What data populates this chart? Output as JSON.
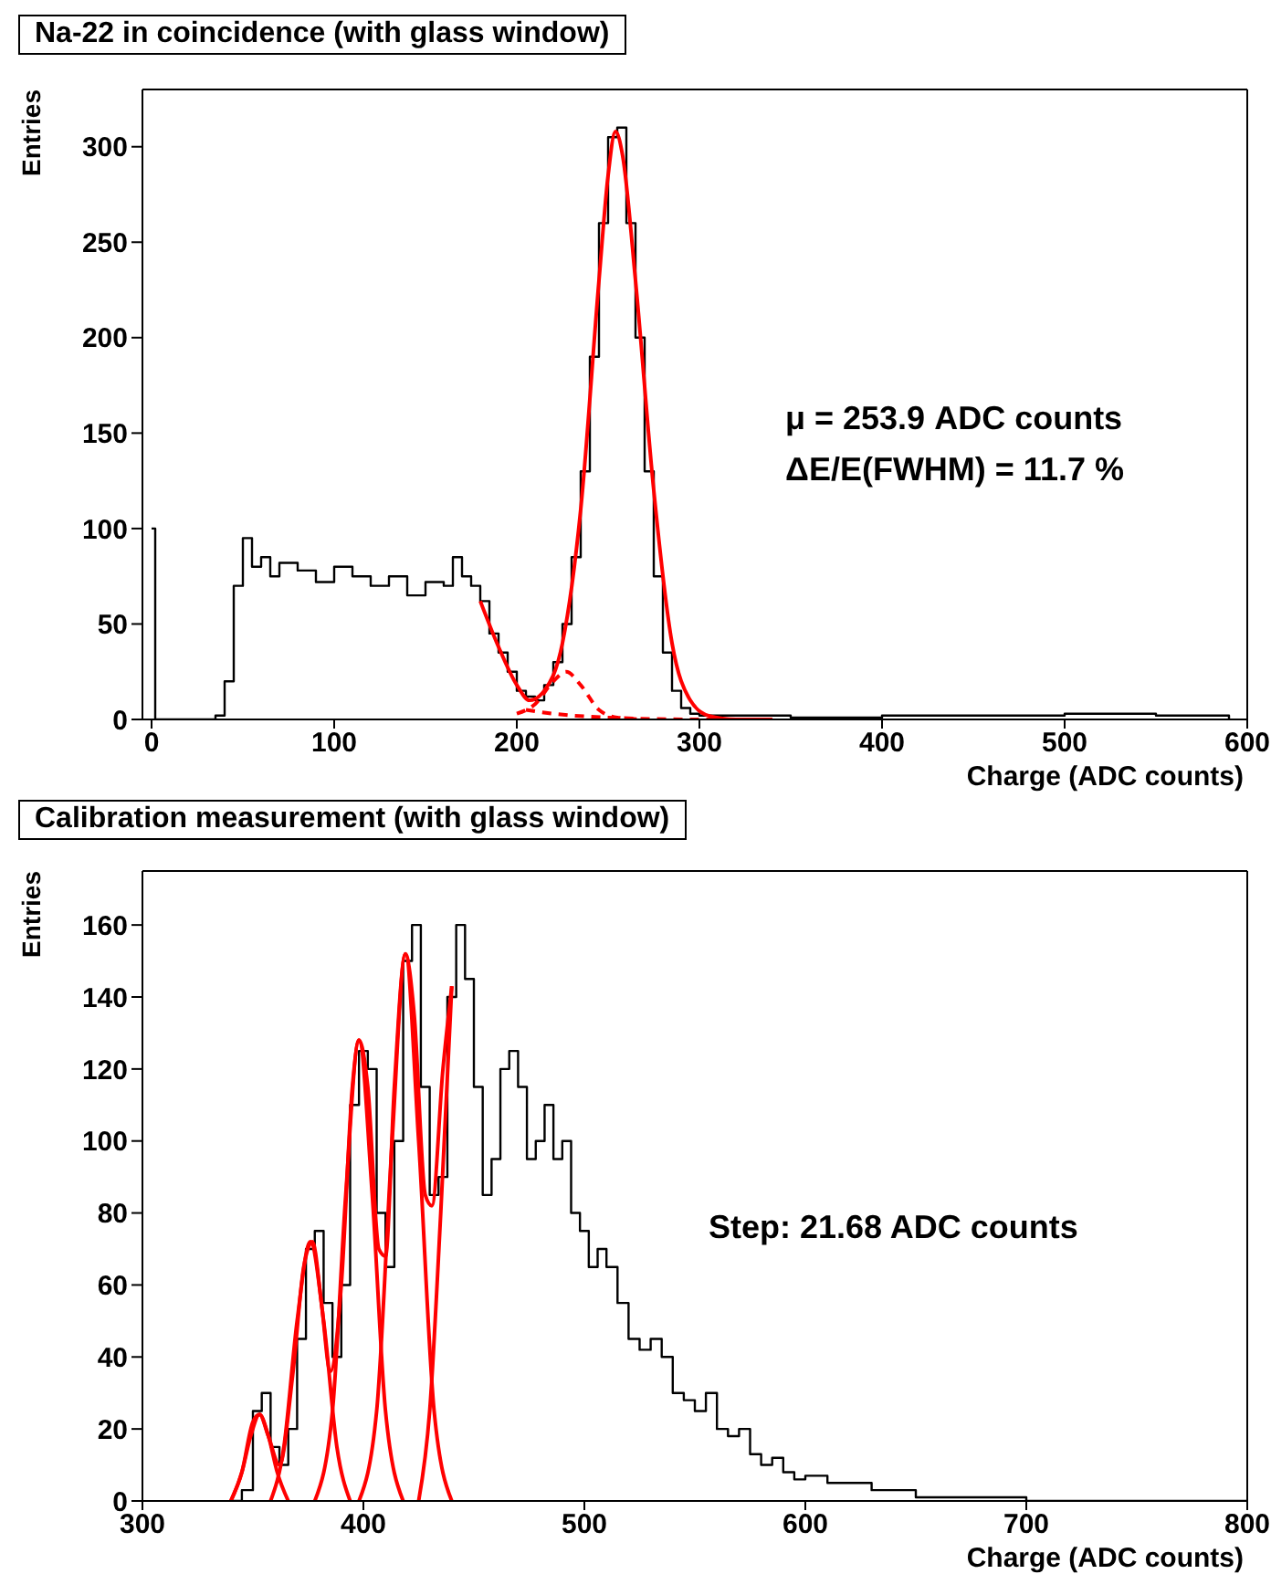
{
  "chart_data": [
    {
      "type": "step",
      "title": "Na-22 in coincidence (with glass window)",
      "xlabel": "Charge (ADC counts)",
      "ylabel": "Entries",
      "xlim": [
        -5,
        600
      ],
      "ylim": [
        0,
        330
      ],
      "xticks": [
        0,
        100,
        200,
        300,
        400,
        500,
        600
      ],
      "yticks": [
        0,
        50,
        100,
        150,
        200,
        250,
        300
      ],
      "annotations": [
        "μ = 253.9 ADC counts",
        "ΔE/E(FWHM) = 11.7 %"
      ],
      "series": [
        {
          "type": "step",
          "color": "#000000",
          "x": [
            0,
            2,
            30,
            35,
            40,
            45,
            50,
            55,
            60,
            65,
            70,
            80,
            90,
            100,
            110,
            120,
            130,
            140,
            150,
            160,
            165,
            170,
            175,
            180,
            185,
            190,
            195,
            200,
            205,
            210,
            215,
            220,
            225,
            230,
            235,
            240,
            245,
            250,
            255,
            260,
            265,
            270,
            275,
            280,
            285,
            290,
            295,
            300,
            350,
            400,
            500,
            550,
            590
          ],
          "values": [
            100,
            0,
            0,
            2,
            20,
            70,
            95,
            80,
            85,
            75,
            82,
            78,
            72,
            80,
            75,
            70,
            75,
            65,
            72,
            70,
            85,
            75,
            70,
            62,
            45,
            35,
            25,
            15,
            12,
            10,
            18,
            30,
            50,
            85,
            130,
            190,
            260,
            305,
            310,
            260,
            200,
            130,
            75,
            35,
            15,
            6,
            3,
            2,
            1,
            2,
            3,
            2,
            0
          ]
        },
        {
          "type": "line",
          "color": "#ff0000",
          "x": [
            180,
            190,
            200,
            207,
            215,
            225,
            235,
            245,
            250,
            254,
            258,
            265,
            275,
            285,
            295,
            305,
            320,
            340
          ],
          "values": [
            62,
            38,
            18,
            10,
            15,
            40,
            110,
            230,
            285,
            308,
            295,
            230,
            120,
            40,
            10,
            2,
            0,
            0
          ]
        },
        {
          "type": "line",
          "color": "#ff0000",
          "line_style": "dashed",
          "x": [
            200,
            210,
            220,
            227,
            235,
            245,
            255,
            270
          ],
          "values": [
            3,
            8,
            20,
            25,
            18,
            5,
            1,
            0
          ]
        },
        {
          "type": "line",
          "color": "#ff0000",
          "line_style": "dashed",
          "x": [
            205,
            220,
            250,
            300,
            340
          ],
          "values": [
            5,
            3,
            1,
            0,
            0
          ]
        }
      ]
    },
    {
      "type": "step",
      "title": "Calibration measurement (with glass window)",
      "xlabel": "Charge (ADC counts)",
      "ylabel": "Entries",
      "xlim": [
        300,
        800
      ],
      "ylim": [
        0,
        175
      ],
      "xticks": [
        300,
        400,
        500,
        600,
        700,
        800
      ],
      "yticks": [
        0,
        20,
        40,
        60,
        80,
        100,
        120,
        140,
        160
      ],
      "annotations": [
        "Step: 21.68 ADC counts"
      ],
      "series": [
        {
          "type": "step",
          "color": "#000000",
          "x": [
            340,
            345,
            350,
            354,
            358,
            362,
            366,
            370,
            374,
            378,
            382,
            386,
            390,
            394,
            398,
            402,
            406,
            410,
            414,
            418,
            422,
            426,
            430,
            434,
            438,
            442,
            446,
            450,
            454,
            458,
            462,
            466,
            470,
            474,
            478,
            482,
            486,
            490,
            494,
            498,
            502,
            506,
            510,
            515,
            520,
            525,
            530,
            535,
            540,
            545,
            550,
            555,
            560,
            565,
            570,
            575,
            580,
            585,
            590,
            595,
            600,
            610,
            620,
            630,
            640,
            650,
            670,
            700,
            800
          ],
          "values": [
            0,
            3,
            25,
            30,
            15,
            10,
            20,
            45,
            70,
            75,
            55,
            40,
            60,
            110,
            125,
            120,
            80,
            65,
            100,
            150,
            160,
            115,
            85,
            90,
            140,
            160,
            145,
            115,
            85,
            95,
            120,
            125,
            115,
            95,
            100,
            110,
            95,
            100,
            80,
            75,
            65,
            70,
            65,
            55,
            45,
            42,
            45,
            40,
            30,
            28,
            25,
            30,
            20,
            18,
            20,
            13,
            10,
            12,
            8,
            6,
            7,
            5,
            5,
            3,
            3,
            1,
            1,
            0,
            0
          ]
        },
        {
          "type": "line",
          "color": "#ff0000",
          "x": [
            340,
            345,
            350,
            353,
            357,
            362,
            368,
            373,
            377,
            381,
            385,
            390,
            395,
            398,
            402,
            407,
            410,
            414,
            419,
            423,
            428,
            431,
            436,
            440
          ],
          "values": [
            0,
            8,
            22,
            24,
            18,
            10,
            35,
            65,
            72,
            55,
            36,
            60,
            115,
            128,
            115,
            70,
            68,
            115,
            152,
            135,
            85,
            82,
            120,
            143
          ]
        },
        {
          "type": "line",
          "color": "#ff0000",
          "x": [
            340,
            345,
            349,
            353,
            357,
            361,
            366
          ],
          "values": [
            0,
            8,
            18,
            24,
            18,
            8,
            0
          ]
        },
        {
          "type": "line",
          "color": "#ff0000",
          "x": [
            358,
            364,
            370,
            376,
            382,
            388,
            394
          ],
          "values": [
            0,
            15,
            50,
            72,
            50,
            15,
            0
          ]
        },
        {
          "type": "line",
          "color": "#ff0000",
          "x": [
            378,
            386,
            392,
            398,
            404,
            410,
            418
          ],
          "values": [
            0,
            25,
            85,
            128,
            85,
            25,
            0
          ]
        },
        {
          "type": "line",
          "color": "#ff0000",
          "x": [
            398,
            406,
            413,
            419,
            425,
            432,
            440
          ],
          "values": [
            0,
            25,
            100,
            152,
            100,
            25,
            0
          ]
        },
        {
          "type": "line",
          "color": "#ff0000",
          "x": [
            425,
            430,
            435,
            440
          ],
          "values": [
            0,
            25,
            80,
            143
          ]
        }
      ]
    }
  ]
}
